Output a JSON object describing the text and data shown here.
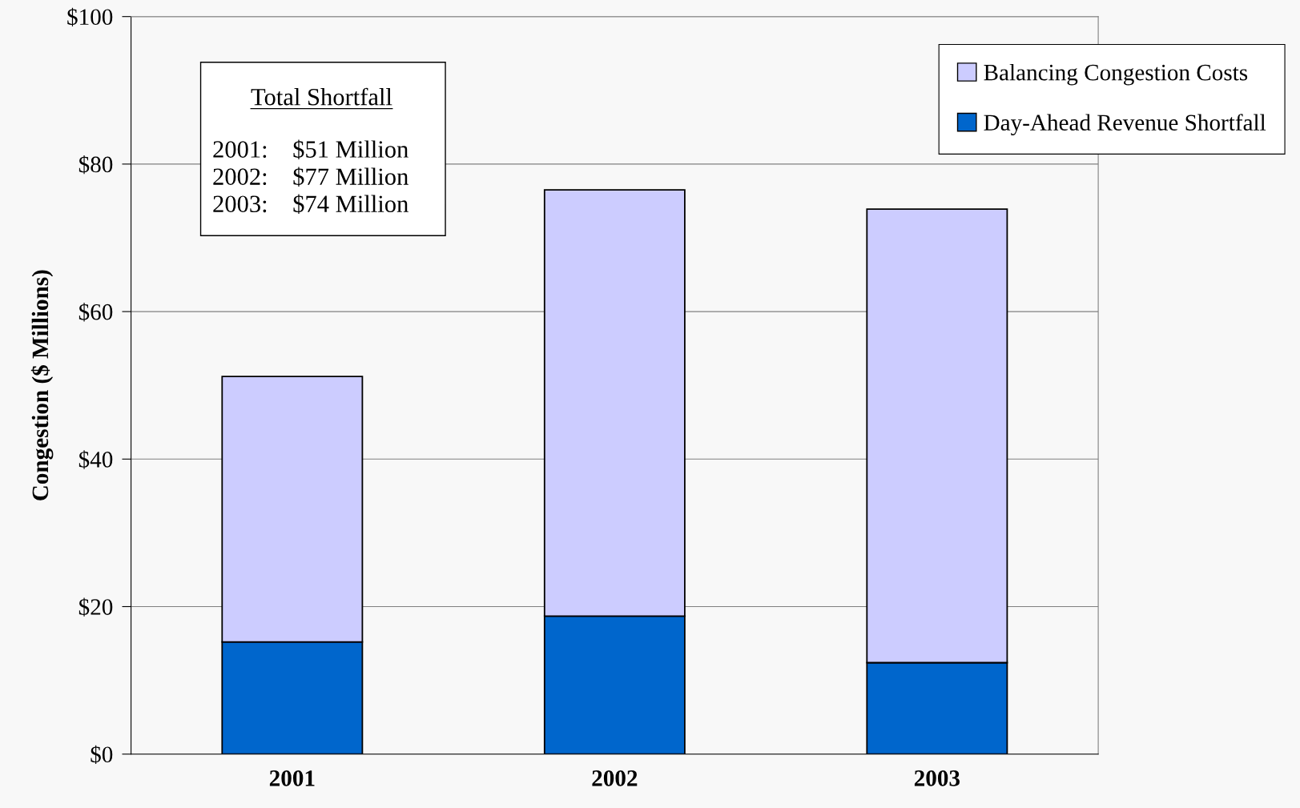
{
  "chart_data": {
    "type": "bar",
    "stacked": true,
    "ylabel": "Congestion ($ Millions)",
    "categories": [
      "2001",
      "2002",
      "2003"
    ],
    "series": [
      {
        "name": "Day-Ahead Revenue Shortfall",
        "color": "#0066cc",
        "values": [
          15.2,
          18.7,
          12.4
        ]
      },
      {
        "name": "Balancing Congestion Costs",
        "color": "#ccccff",
        "values": [
          36.0,
          57.8,
          61.5
        ]
      }
    ],
    "ylim": [
      0,
      100
    ],
    "yticks": [
      {
        "value": 0,
        "label": "$0"
      },
      {
        "value": 20,
        "label": "$20"
      },
      {
        "value": 40,
        "label": "$40"
      },
      {
        "value": 60,
        "label": "$60"
      },
      {
        "value": 80,
        "label": "$80"
      },
      {
        "value": 100,
        "label": "$100"
      }
    ],
    "grid": "y",
    "legend": "top right",
    "annotations": [
      "Total Shortfall",
      "2001:    $51 Million",
      "2002:    $77 Million",
      "2003:    $74 Million"
    ]
  }
}
